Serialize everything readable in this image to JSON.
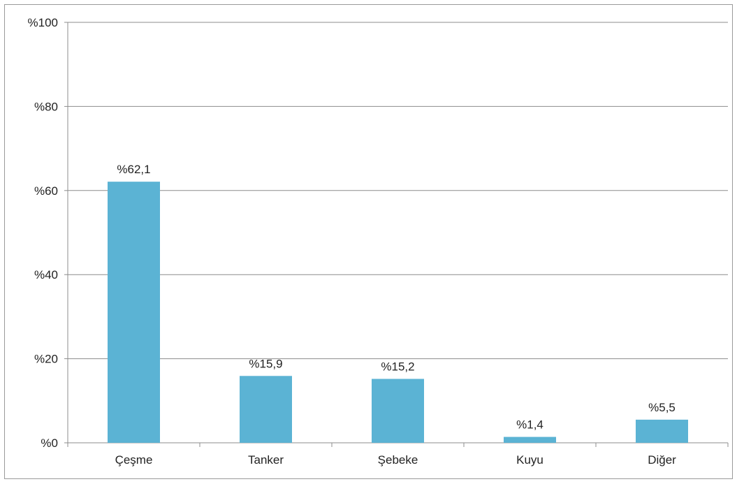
{
  "chart_data": {
    "type": "bar",
    "title": "",
    "xlabel": "",
    "ylabel": "",
    "categories": [
      "Çeşme",
      "Tanker",
      "Şebeke",
      "Kuyu",
      "Diğer"
    ],
    "values": [
      62.1,
      15.9,
      15.2,
      1.4,
      5.5
    ],
    "data_labels": [
      "%62,1",
      "%15,9",
      "%15,2",
      "%1,4",
      "%5,5"
    ],
    "ylim": [
      0,
      100
    ],
    "yticks": [
      0,
      20,
      40,
      60,
      80,
      100
    ],
    "ytick_labels": [
      "%0",
      "%20",
      "%40",
      "%60",
      "%80",
      "%100"
    ],
    "grid": true,
    "legend": "none",
    "bar_color": "#5bb3d4",
    "grid_color": "#8c8c8c"
  }
}
